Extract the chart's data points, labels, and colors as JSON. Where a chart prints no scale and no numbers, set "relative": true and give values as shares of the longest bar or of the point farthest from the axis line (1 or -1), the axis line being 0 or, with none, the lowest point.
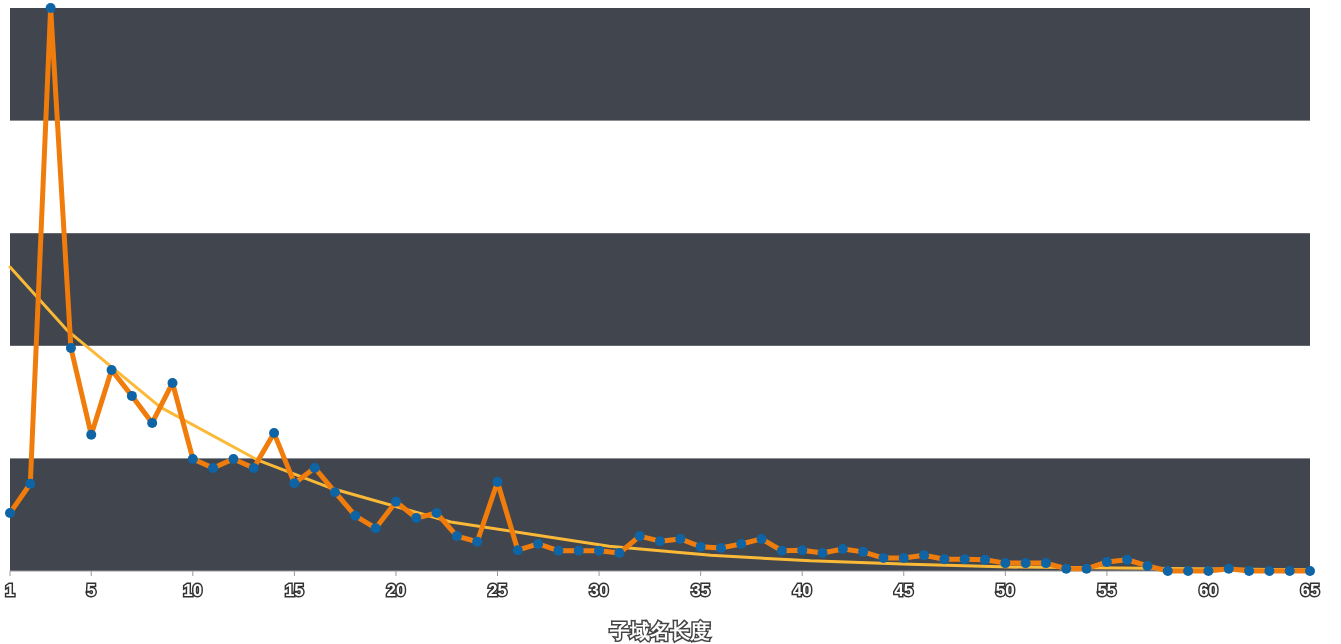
{
  "chart_data": {
    "type": "line",
    "relative": true,
    "xlabel": "子域名长度",
    "x": [
      1,
      2,
      3,
      4,
      5,
      6,
      7,
      8,
      9,
      10,
      11,
      12,
      13,
      14,
      15,
      16,
      17,
      18,
      19,
      20,
      21,
      22,
      23,
      24,
      25,
      26,
      27,
      28,
      29,
      30,
      31,
      32,
      33,
      34,
      35,
      36,
      37,
      38,
      39,
      40,
      41,
      42,
      43,
      44,
      45,
      46,
      47,
      48,
      49,
      50,
      51,
      52,
      53,
      54,
      55,
      56,
      57,
      58,
      59,
      60,
      61,
      62,
      63,
      64,
      65
    ],
    "xlim": [
      1,
      65
    ],
    "xticks": [
      1,
      5,
      10,
      15,
      20,
      25,
      30,
      35,
      40,
      45,
      50,
      55,
      60,
      65
    ],
    "grid": false,
    "marker": "circle",
    "line_style": "solid",
    "bands": [
      {
        "axis": "y",
        "from": 0,
        "to": 0.2,
        "color": "#41454e"
      },
      {
        "axis": "y",
        "from": 0.4,
        "to": 0.6,
        "color": "#41454e"
      },
      {
        "axis": "y",
        "from": 0.8,
        "to": 1,
        "color": "#41454e"
      }
    ],
    "series": [
      {
        "color": "#f07c0c",
        "colors": [
          "#0e64a5",
          "#0e64a5",
          "#0e64a5",
          "#0e64a5",
          "#0e64a5",
          "#0e64a5",
          "#0e64a5",
          "#0e64a5",
          "#0e64a5",
          "#0e64a5",
          "#0e64a5",
          "#0e64a5",
          "#0e64a5",
          "#0e64a5",
          "#0e64a5",
          "#0e64a5",
          "#0e64a5",
          "#0e64a5",
          "#0e64a5",
          "#0e64a5",
          "#0e64a5",
          "#0e64a5",
          "#0e64a5",
          "#0e64a5",
          "#0e64a5",
          "#0e64a5",
          "#0e64a5",
          "#0e64a5",
          "#0e64a5",
          "#0e64a5",
          "#0e64a5",
          "#0e64a5",
          "#0e64a5",
          "#0e64a5",
          "#0e64a5",
          "#0e64a5",
          "#0e64a5",
          "#0e64a5",
          "#0e64a5",
          "#0e64a5",
          "#0e64a5",
          "#0e64a5",
          "#0e64a5",
          "#0e64a5",
          "#0e64a5",
          "#0e64a5",
          "#0e64a5",
          "#0e64a5",
          "#0e64a5",
          "#0e64a5",
          "#0e64a5",
          "#0e64a5",
          "#0e64a5",
          "#0e64a5",
          "#0e64a5",
          "#0e64a5",
          "#0e64a5",
          "#0e64a5",
          "#0e64a5",
          "#0e64a5",
          "#0e64a5",
          "#0e64a5",
          "#0e64a5",
          "#0e64a5",
          "#0e64a5"
        ],
        "values": [
          0.103,
          0.155,
          1,
          0.396,
          0.242,
          0.357,
          0.311,
          0.263,
          0.334,
          0.199,
          0.183,
          0.199,
          0.183,
          0.245,
          0.156,
          0.183,
          0.14,
          0.098,
          0.076,
          0.123,
          0.094,
          0.103,
          0.062,
          0.052,
          0.158,
          0.037,
          0.048,
          0.036,
          0.036,
          0.036,
          0.032,
          0.062,
          0.053,
          0.057,
          0.043,
          0.041,
          0.048,
          0.057,
          0.036,
          0.037,
          0.032,
          0.039,
          0.034,
          0.023,
          0.023,
          0.028,
          0.021,
          0.021,
          0.02,
          0.014,
          0.014,
          0.014,
          0.004,
          0.004,
          0.016,
          0.02,
          0.009,
          0,
          0,
          0,
          0.004,
          0,
          0,
          0,
          0
        ]
      },
      {
        "type": "line",
        "marker": "none",
        "color": "#fbb938",
        "x": [
          1,
          3.8,
          8.4,
          13.2,
          16.9,
          22.7,
          30.5,
          35.5,
          40.4,
          45.3,
          50.2,
          65
        ],
        "values": [
          0.54,
          0.428,
          0.291,
          0.197,
          0.146,
          0.087,
          0.044,
          0.028,
          0.018,
          0.012,
          0.007,
          0.002
        ]
      }
    ]
  }
}
